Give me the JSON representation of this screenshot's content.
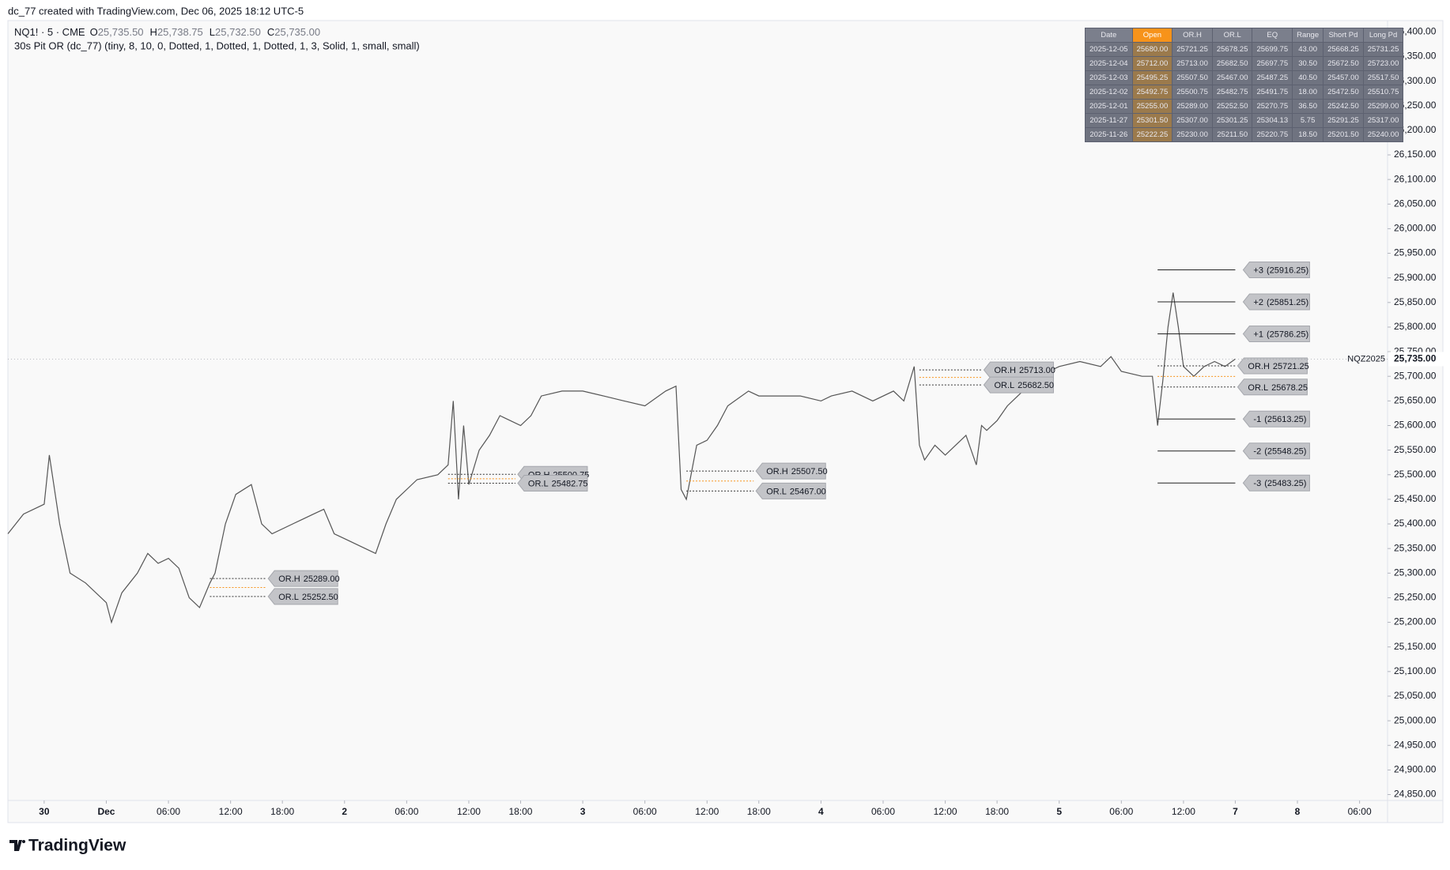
{
  "header": {
    "credit": "dc_77 created with TradingView.com, Dec 06, 2025 18:12 UTC-5",
    "ohlc": [
      {
        "label": "O",
        "text": "25,735.50"
      },
      {
        "label": "H",
        "text": "25,738.75"
      },
      {
        "label": "L",
        "text": "25,732.50"
      },
      {
        "label": "C",
        "text": "25,735.00"
      }
    ],
    "indicator": "30s Pit OR (dc_77) (tiny, 8, 10, 0, Dotted, 1, Dotted, 1, Dotted, 1, 3, Solid, 1, small, small)"
  },
  "table": {
    "columns": [
      "Date",
      "Open",
      "OR.H",
      "OR.L",
      "EQ",
      "Range",
      "Short Pd",
      "Long Pd"
    ],
    "rows": [
      [
        "2025-12-05",
        "25680.00",
        "25721.25",
        "25678.25",
        "25699.75",
        "43.00",
        "25668.25",
        "25731.25"
      ],
      [
        "2025-12-04",
        "25712.00",
        "25713.00",
        "25682.50",
        "25697.75",
        "30.50",
        "25672.50",
        "25723.00"
      ],
      [
        "2025-12-03",
        "25495.25",
        "25507.50",
        "25467.00",
        "25487.25",
        "40.50",
        "25457.00",
        "25517.50"
      ],
      [
        "2025-12-02",
        "25492.75",
        "25500.75",
        "25482.75",
        "25491.75",
        "18.00",
        "25472.50",
        "25510.75"
      ],
      [
        "2025-12-01",
        "25255.00",
        "25289.00",
        "25252.50",
        "25270.75",
        "36.50",
        "25242.50",
        "25299.00"
      ],
      [
        "2025-11-27",
        "25301.50",
        "25307.00",
        "25301.25",
        "25304.13",
        "5.75",
        "25291.25",
        "25317.00"
      ],
      [
        "2025-11-26",
        "25222.25",
        "25230.00",
        "25211.50",
        "25220.75",
        "18.50",
        "25201.50",
        "25240.00"
      ]
    ]
  },
  "footer": {
    "brand": "TradingView"
  },
  "chart_data": {
    "type": "line",
    "x": [
      -9.5,
      -8,
      -6,
      -5.5,
      -4.5,
      -3.5,
      -2,
      0,
      0.5,
      1.5,
      3,
      4,
      5,
      6,
      7,
      8,
      9,
      10,
      10.5,
      11.5,
      12.5,
      14,
      15,
      16,
      18,
      20,
      21,
      22,
      23,
      25,
      26,
      27,
      28,
      30,
      32,
      33,
      33.5,
      34,
      34.5,
      35,
      36,
      37,
      38,
      40,
      41,
      42,
      44,
      46,
      48,
      50,
      52,
      54,
      55,
      55.5,
      56,
      57,
      58,
      59,
      60,
      62,
      63,
      65,
      67,
      69,
      70,
      72,
      74,
      76,
      77,
      78,
      78.5,
      79,
      80,
      81,
      82,
      83,
      84,
      84.5,
      85,
      86,
      87,
      88,
      90,
      92,
      94,
      96,
      97,
      98,
      100,
      101,
      101.5,
      102,
      102.5,
      103,
      103.5,
      104,
      105,
      106,
      107,
      108,
      109
    ],
    "series": [
      {
        "name": "NQ1! · 5 · CME",
        "color": "#555555",
        "values": [
          25380,
          25420,
          25440,
          25540,
          25400,
          25300,
          25280,
          25240,
          25200,
          25260,
          25300,
          25340,
          25320,
          25330,
          25310,
          25250,
          25230,
          25280,
          25300,
          25400,
          25460,
          25480,
          25400,
          25380,
          25400,
          25420,
          25430,
          25380,
          25370,
          25350,
          25340,
          25400,
          25450,
          25490,
          25500,
          25520,
          25650,
          25450,
          25600,
          25480,
          25550,
          25580,
          25620,
          25600,
          25620,
          25660,
          25670,
          25670,
          25660,
          25650,
          25640,
          25670,
          25680,
          25470,
          25450,
          25560,
          25570,
          25600,
          25640,
          25670,
          25660,
          25660,
          25660,
          25650,
          25660,
          25670,
          25650,
          25670,
          25650,
          25720,
          25560,
          25530,
          25560,
          25540,
          25560,
          25580,
          25520,
          25600,
          25590,
          25610,
          25640,
          25660,
          25700,
          25720,
          25730,
          25720,
          25740,
          25710,
          25700,
          25700,
          25600,
          25690,
          25800,
          25870,
          25800,
          25720,
          25700,
          25720,
          25730,
          25720,
          25735
        ]
      }
    ],
    "xlim": [
      -9.5,
      123.7
    ],
    "xticks": [
      {
        "value": -6,
        "label": "30"
      },
      {
        "value": 0,
        "label": "Dec"
      },
      {
        "value": 6,
        "label": "06:00"
      },
      {
        "value": 12,
        "label": "12:00"
      },
      {
        "value": 17,
        "label": "18:00"
      },
      {
        "value": 23,
        "label": "2"
      },
      {
        "value": 29,
        "label": "06:00"
      },
      {
        "value": 35,
        "label": "12:00"
      },
      {
        "value": 40,
        "label": "18:00"
      },
      {
        "value": 46,
        "label": "3"
      },
      {
        "value": 52,
        "label": "06:00"
      },
      {
        "value": 58,
        "label": "12:00"
      },
      {
        "value": 63,
        "label": "18:00"
      },
      {
        "value": 69,
        "label": "4"
      },
      {
        "value": 75,
        "label": "06:00"
      },
      {
        "value": 81,
        "label": "12:00"
      },
      {
        "value": 86,
        "label": "18:00"
      },
      {
        "value": 92,
        "label": "5"
      },
      {
        "value": 98,
        "label": "06:00"
      },
      {
        "value": 104,
        "label": "12:00"
      },
      {
        "value": 109,
        "label": "7"
      },
      {
        "value": 115,
        "label": "8"
      },
      {
        "value": 121,
        "label": "06:00"
      }
    ],
    "ylim": [
      24838,
      26423
    ],
    "yticks": [
      {
        "value": 24850,
        "label": "24,850.00"
      },
      {
        "value": 24900,
        "label": "24,900.00"
      },
      {
        "value": 24950,
        "label": "24,950.00"
      },
      {
        "value": 25000,
        "label": "25,000.00"
      },
      {
        "value": 25050,
        "label": "25,050.00"
      },
      {
        "value": 25100,
        "label": "25,100.00"
      },
      {
        "value": 25150,
        "label": "25,150.00"
      },
      {
        "value": 25200,
        "label": "25,200.00"
      },
      {
        "value": 25250,
        "label": "25,250.00"
      },
      {
        "value": 25300,
        "label": "25,300.00"
      },
      {
        "value": 25350,
        "label": "25,350.00"
      },
      {
        "value": 25400,
        "label": "25,400.00"
      },
      {
        "value": 25450,
        "label": "25,450.00"
      },
      {
        "value": 25500,
        "label": "25,500.00"
      },
      {
        "value": 25550,
        "label": "25,550.00"
      },
      {
        "value": 25600,
        "label": "25,600.00"
      },
      {
        "value": 25650,
        "label": "25,650.00"
      },
      {
        "value": 25700,
        "label": "25,700.00"
      },
      {
        "value": 25750,
        "label": "25,750.00"
      },
      {
        "value": 25800,
        "label": "25,800.00"
      },
      {
        "value": 25850,
        "label": "25,850.00"
      },
      {
        "value": 25900,
        "label": "25,900.00"
      },
      {
        "value": 25950,
        "label": "25,950.00"
      },
      {
        "value": 26000,
        "label": "26,000.00"
      },
      {
        "value": 26050,
        "label": "26,050.00"
      },
      {
        "value": 26100,
        "label": "26,100.00"
      },
      {
        "value": 26150,
        "label": "26,150.00"
      },
      {
        "value": 26200,
        "label": "26,200.00"
      },
      {
        "value": 26250,
        "label": "26,250.00"
      },
      {
        "value": 26300,
        "label": "26,300.00"
      },
      {
        "value": 26350,
        "label": "26,350.00"
      },
      {
        "value": 26400,
        "label": "26,400.00"
      }
    ],
    "grid": false,
    "last_price": {
      "symbol": "NQZ2025",
      "value": 25735,
      "label": "25,735.00"
    },
    "ranges": [
      {
        "x0": 10,
        "x1": 15.4,
        "eq": 25270.75,
        "high": {
          "label": "OR.H",
          "value": 25289,
          "value_label": "25289.00"
        },
        "low": {
          "label": "OR.L",
          "value": 25252.5,
          "value_label": "25252.50"
        }
      },
      {
        "x0": 33,
        "x1": 39.5,
        "eq": 25491.75,
        "high": {
          "label": "OR.H",
          "value": 25500.75,
          "value_label": "25500.75"
        },
        "low": {
          "label": "OR.L",
          "value": 25482.75,
          "value_label": "25482.75"
        }
      },
      {
        "x0": 56,
        "x1": 62.5,
        "eq": 25487.25,
        "high": {
          "label": "OR.H",
          "value": 25507.5,
          "value_label": "25507.50"
        },
        "low": {
          "label": "OR.L",
          "value": 25467,
          "value_label": "25467.00"
        }
      },
      {
        "x0": 78.5,
        "x1": 84.5,
        "eq": 25697.75,
        "high": {
          "label": "OR.H",
          "value": 25713,
          "value_label": "25713.00"
        },
        "low": {
          "label": "OR.L",
          "value": 25682.5,
          "value_label": "25682.50"
        }
      },
      {
        "x0": 101.5,
        "x1": 109,
        "eq": 25699.75,
        "high": {
          "label": "OR.H",
          "value": 25721.25,
          "value_label": "25721.25"
        },
        "low": {
          "label": "OR.L",
          "value": 25678.25,
          "value_label": "25678.25"
        }
      }
    ],
    "levels": [
      {
        "label": "+3",
        "value": 25916.25,
        "value_label": "(25916.25)",
        "x0": 101.5,
        "x1": 109
      },
      {
        "label": "+2",
        "value": 25851.25,
        "value_label": "(25851.25)",
        "x0": 101.5,
        "x1": 109
      },
      {
        "label": "+1",
        "value": 25786.25,
        "value_label": "(25786.25)",
        "x0": 101.5,
        "x1": 109
      },
      {
        "label": "-1",
        "value": 25613.25,
        "value_label": "(25613.25)",
        "x0": 101.5,
        "x1": 109
      },
      {
        "label": "-2",
        "value": 25548.25,
        "value_label": "(25548.25)",
        "x0": 101.5,
        "x1": 109
      },
      {
        "label": "-3",
        "value": 25483.25,
        "value_label": "(25483.25)",
        "x0": 101.5,
        "x1": 109
      }
    ]
  }
}
